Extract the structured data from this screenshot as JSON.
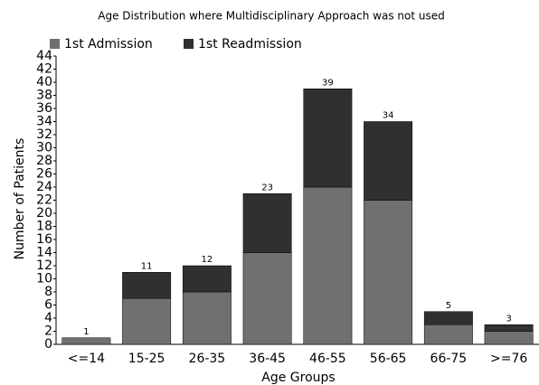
{
  "chart_data": {
    "type": "stacked_bar",
    "title": "Age Distribution where Multidisciplinary Approach was not used",
    "x_label": "Age Groups",
    "y_label": "Number of Patients",
    "categories": [
      "<=14",
      "15-25",
      "26-35",
      "36-45",
      "46-55",
      "56-65",
      "66-75",
      ">=76"
    ],
    "series": [
      {
        "name": "1st Admission",
        "color": "#707070",
        "values": [
          1,
          7,
          8,
          14,
          24,
          22,
          3,
          2
        ]
      },
      {
        "name": "1st Readmission",
        "color": "#303030",
        "values": [
          0,
          4,
          4,
          9,
          15,
          12,
          2,
          1
        ]
      }
    ],
    "totals": [
      1,
      11,
      12,
      23,
      39,
      34,
      5,
      3
    ],
    "ylim": [
      0,
      44
    ],
    "yticks": [
      0,
      2,
      4,
      6,
      8,
      10,
      12,
      14,
      16,
      18,
      20,
      22,
      24,
      26,
      28,
      30,
      32,
      34,
      36,
      38,
      40,
      42,
      44
    ],
    "legend": "top-left"
  }
}
